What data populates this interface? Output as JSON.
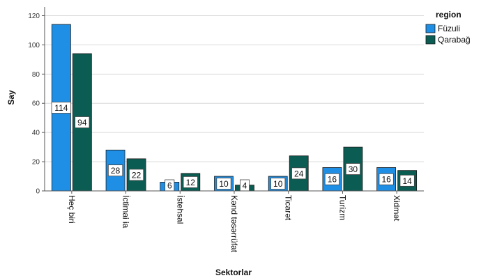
{
  "chart_data": {
    "type": "bar",
    "xlabel": "Sektorlar",
    "ylabel": "Say",
    "ylim": [
      0,
      125
    ],
    "yticks": [
      0,
      20,
      40,
      60,
      80,
      100,
      120
    ],
    "grid": true,
    "legend": {
      "title": "region",
      "placement": "top-right"
    },
    "categories": [
      "Heç biri",
      "İctimai ia",
      "İstehsal",
      "Kənd təsərrüfat",
      "Ticarət",
      "Turizm",
      "Xidmət"
    ],
    "series": [
      {
        "name": "Füzuli",
        "color": "#1F8FE5",
        "values": [
          114,
          28,
          6,
          10,
          10,
          16,
          16
        ]
      },
      {
        "name": "Qarabağ",
        "color": "#0B5C52",
        "values": [
          94,
          22,
          12,
          4,
          24,
          30,
          14
        ]
      }
    ]
  }
}
